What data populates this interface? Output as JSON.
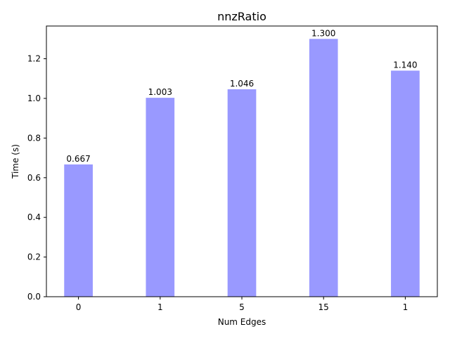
{
  "chart_data": {
    "type": "bar",
    "title": "nnzRatio",
    "xlabel": "Num Edges",
    "ylabel": "Time (s)",
    "categories": [
      "0",
      "1",
      "5",
      "15",
      "1"
    ],
    "values": [
      0.667,
      1.003,
      1.046,
      1.3,
      1.14
    ],
    "value_labels": [
      "0.667",
      "1.003",
      "1.046",
      "1.300",
      "1.140"
    ],
    "ylim": [
      0,
      1.365
    ],
    "yticks": [
      0.0,
      0.2,
      0.4,
      0.6,
      0.8,
      1.0,
      1.2
    ],
    "ytick_labels": [
      "0.0",
      "0.2",
      "0.4",
      "0.6",
      "0.8",
      "1.0",
      "1.2"
    ],
    "bar_color": "#9999ff",
    "grid": false,
    "legend": "none"
  }
}
